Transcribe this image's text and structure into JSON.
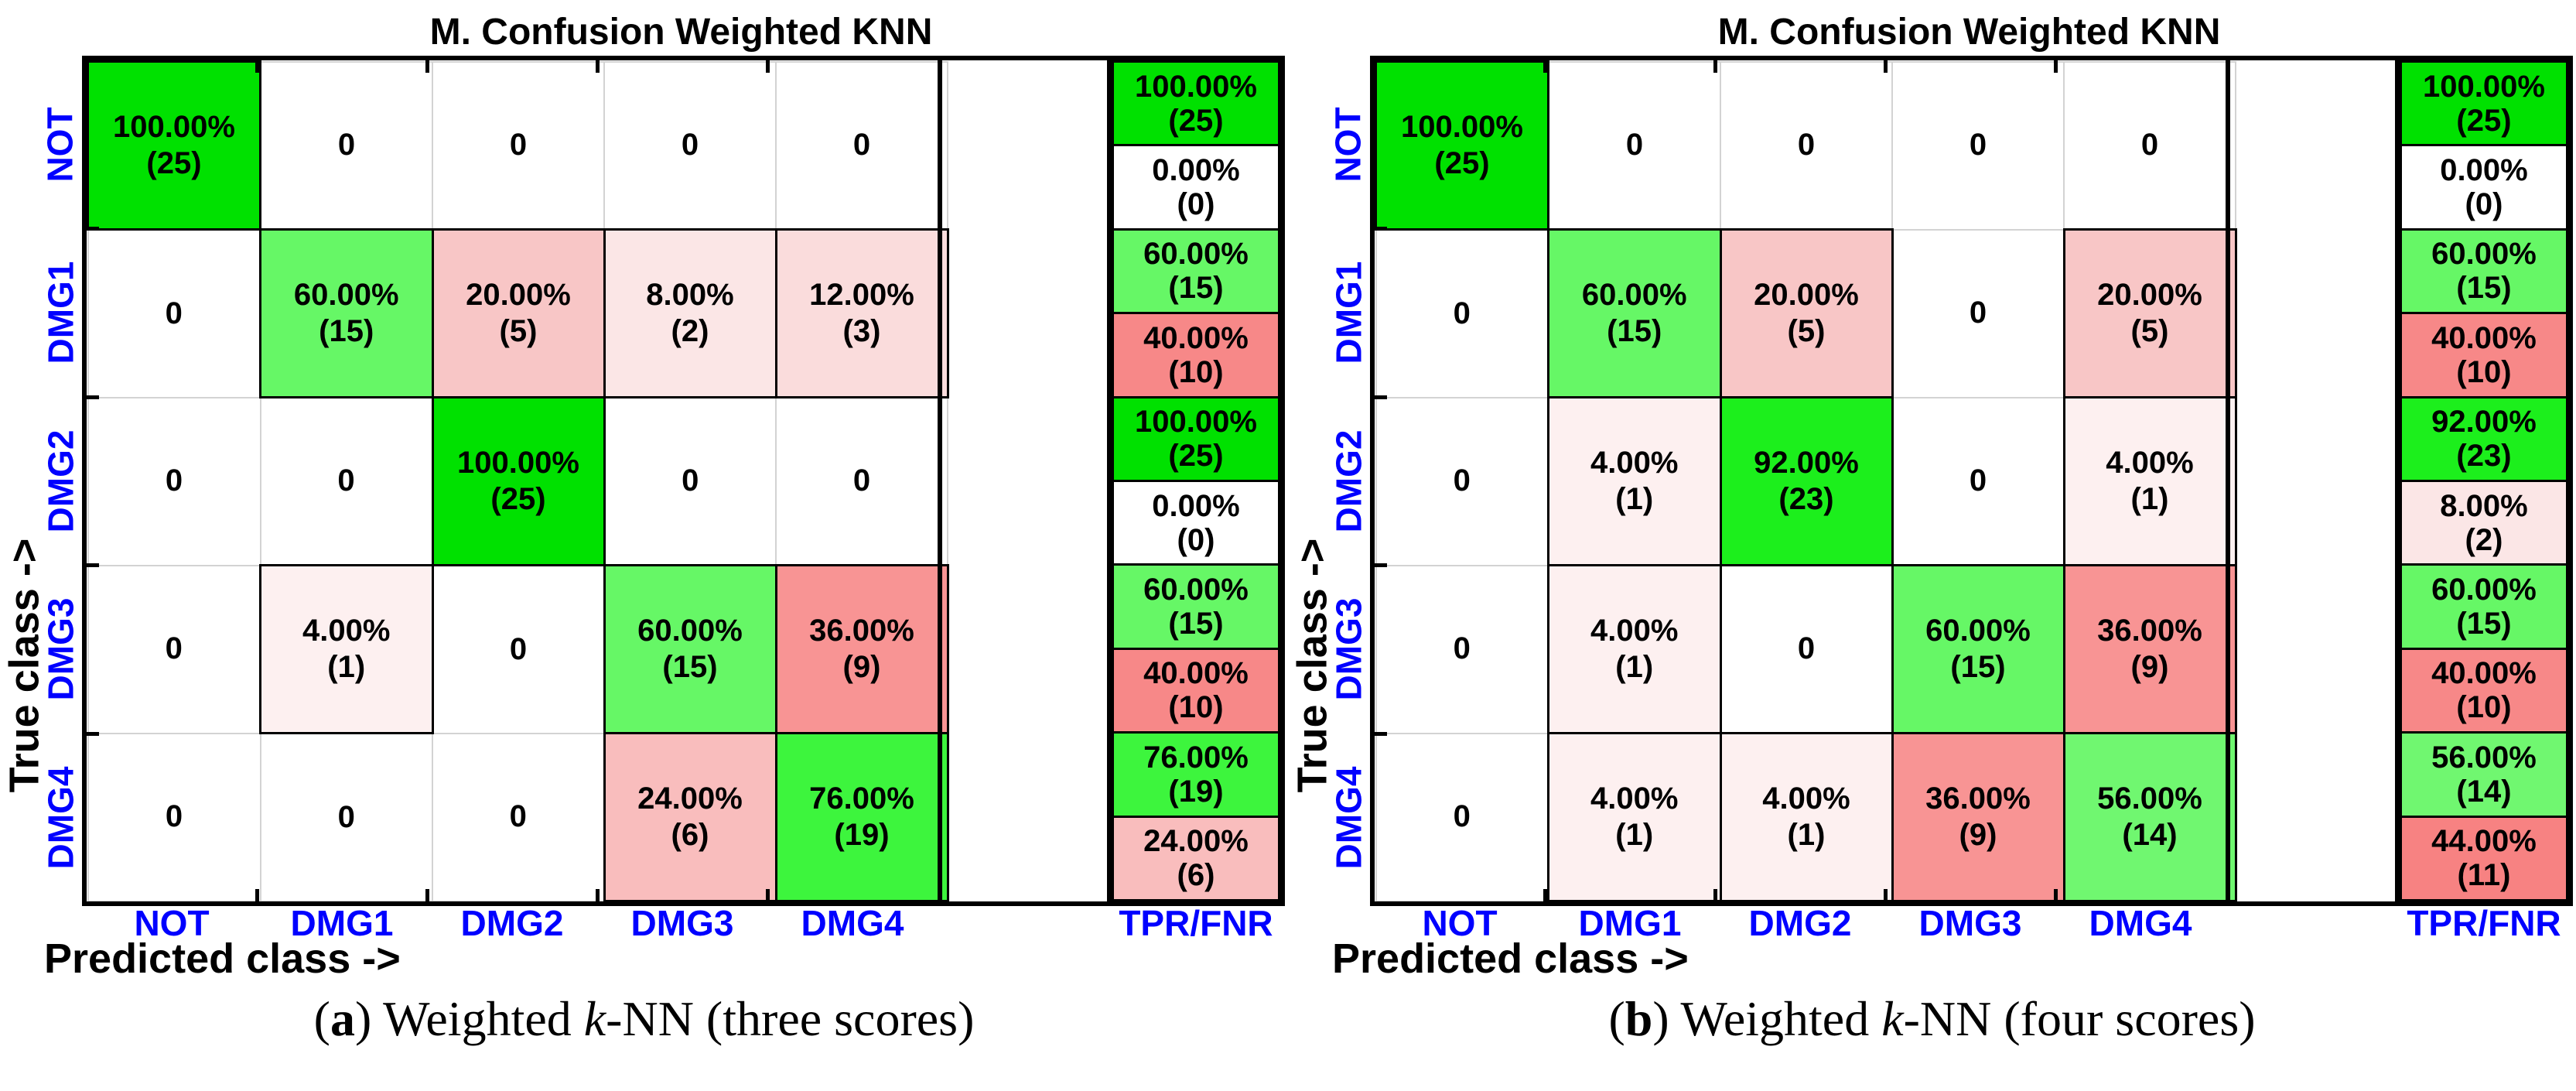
{
  "figure": {
    "background": "#FFFFFF"
  },
  "colors": {
    "label_blue": "#0000FF",
    "axis_black": "#000000",
    "grid_gray": "#D3D3D3",
    "cell_white": "#FFFFFF",
    "green_scale": {
      "56": "#70F770",
      "60": "#66F766",
      "76": "#3DF53D",
      "92": "#1CEF1C",
      "100": "#00E100"
    },
    "red_scale": {
      "4": "#FDF0F0",
      "8": "#FBE6E6",
      "12": "#FADCDC",
      "20": "#F8C6C6",
      "24": "#F9BDBD",
      "36": "#F89494",
      "40": "#F78888",
      "44": "#F78282"
    }
  },
  "chart_data": [
    {
      "type": "heatmap",
      "title": "M. Confusion Weighted KNN",
      "xlabel": "Predicted class ->",
      "ylabel": "True class ->",
      "classes": [
        "NOT",
        "DMG1",
        "DMG2",
        "DMG3",
        "DMG4"
      ],
      "summary_col_label": "TPR/FNR",
      "caption_parts": [
        "(",
        "a",
        ") Weighted ",
        "k",
        "-NN (three scores)"
      ],
      "cells_pct": [
        [
          100,
          0,
          0,
          0,
          0
        ],
        [
          0,
          60,
          20,
          8,
          12
        ],
        [
          0,
          0,
          100,
          0,
          0
        ],
        [
          0,
          4,
          0,
          60,
          36
        ],
        [
          0,
          0,
          0,
          24,
          76
        ]
      ],
      "cells_count": [
        [
          25,
          0,
          0,
          0,
          0
        ],
        [
          0,
          15,
          5,
          2,
          3
        ],
        [
          0,
          0,
          25,
          0,
          0
        ],
        [
          0,
          1,
          0,
          15,
          9
        ],
        [
          0,
          0,
          0,
          6,
          19
        ]
      ],
      "tpr_pct": [
        100,
        60,
        100,
        60,
        76
      ],
      "tpr_count": [
        25,
        15,
        25,
        15,
        19
      ],
      "fnr_pct": [
        0,
        40,
        0,
        40,
        24
      ],
      "fnr_count": [
        0,
        10,
        0,
        10,
        6
      ]
    },
    {
      "type": "heatmap",
      "title": "M. Confusion Weighted KNN",
      "xlabel": "Predicted class ->",
      "ylabel": "True class ->",
      "classes": [
        "NOT",
        "DMG1",
        "DMG2",
        "DMG3",
        "DMG4"
      ],
      "summary_col_label": "TPR/FNR",
      "caption_parts": [
        "(",
        "b",
        ") Weighted ",
        "k",
        "-NN (four scores)"
      ],
      "cells_pct": [
        [
          100,
          0,
          0,
          0,
          0
        ],
        [
          0,
          60,
          20,
          0,
          20
        ],
        [
          0,
          4,
          92,
          0,
          4
        ],
        [
          0,
          4,
          0,
          60,
          36
        ],
        [
          0,
          4,
          4,
          36,
          56
        ]
      ],
      "cells_count": [
        [
          25,
          0,
          0,
          0,
          0
        ],
        [
          0,
          15,
          5,
          0,
          5
        ],
        [
          0,
          1,
          23,
          0,
          1
        ],
        [
          0,
          1,
          0,
          15,
          9
        ],
        [
          0,
          1,
          1,
          9,
          14
        ]
      ],
      "tpr_pct": [
        100,
        60,
        92,
        60,
        56
      ],
      "tpr_count": [
        25,
        15,
        23,
        15,
        14
      ],
      "fnr_pct": [
        0,
        40,
        8,
        40,
        44
      ],
      "fnr_count": [
        0,
        10,
        2,
        10,
        11
      ]
    }
  ]
}
